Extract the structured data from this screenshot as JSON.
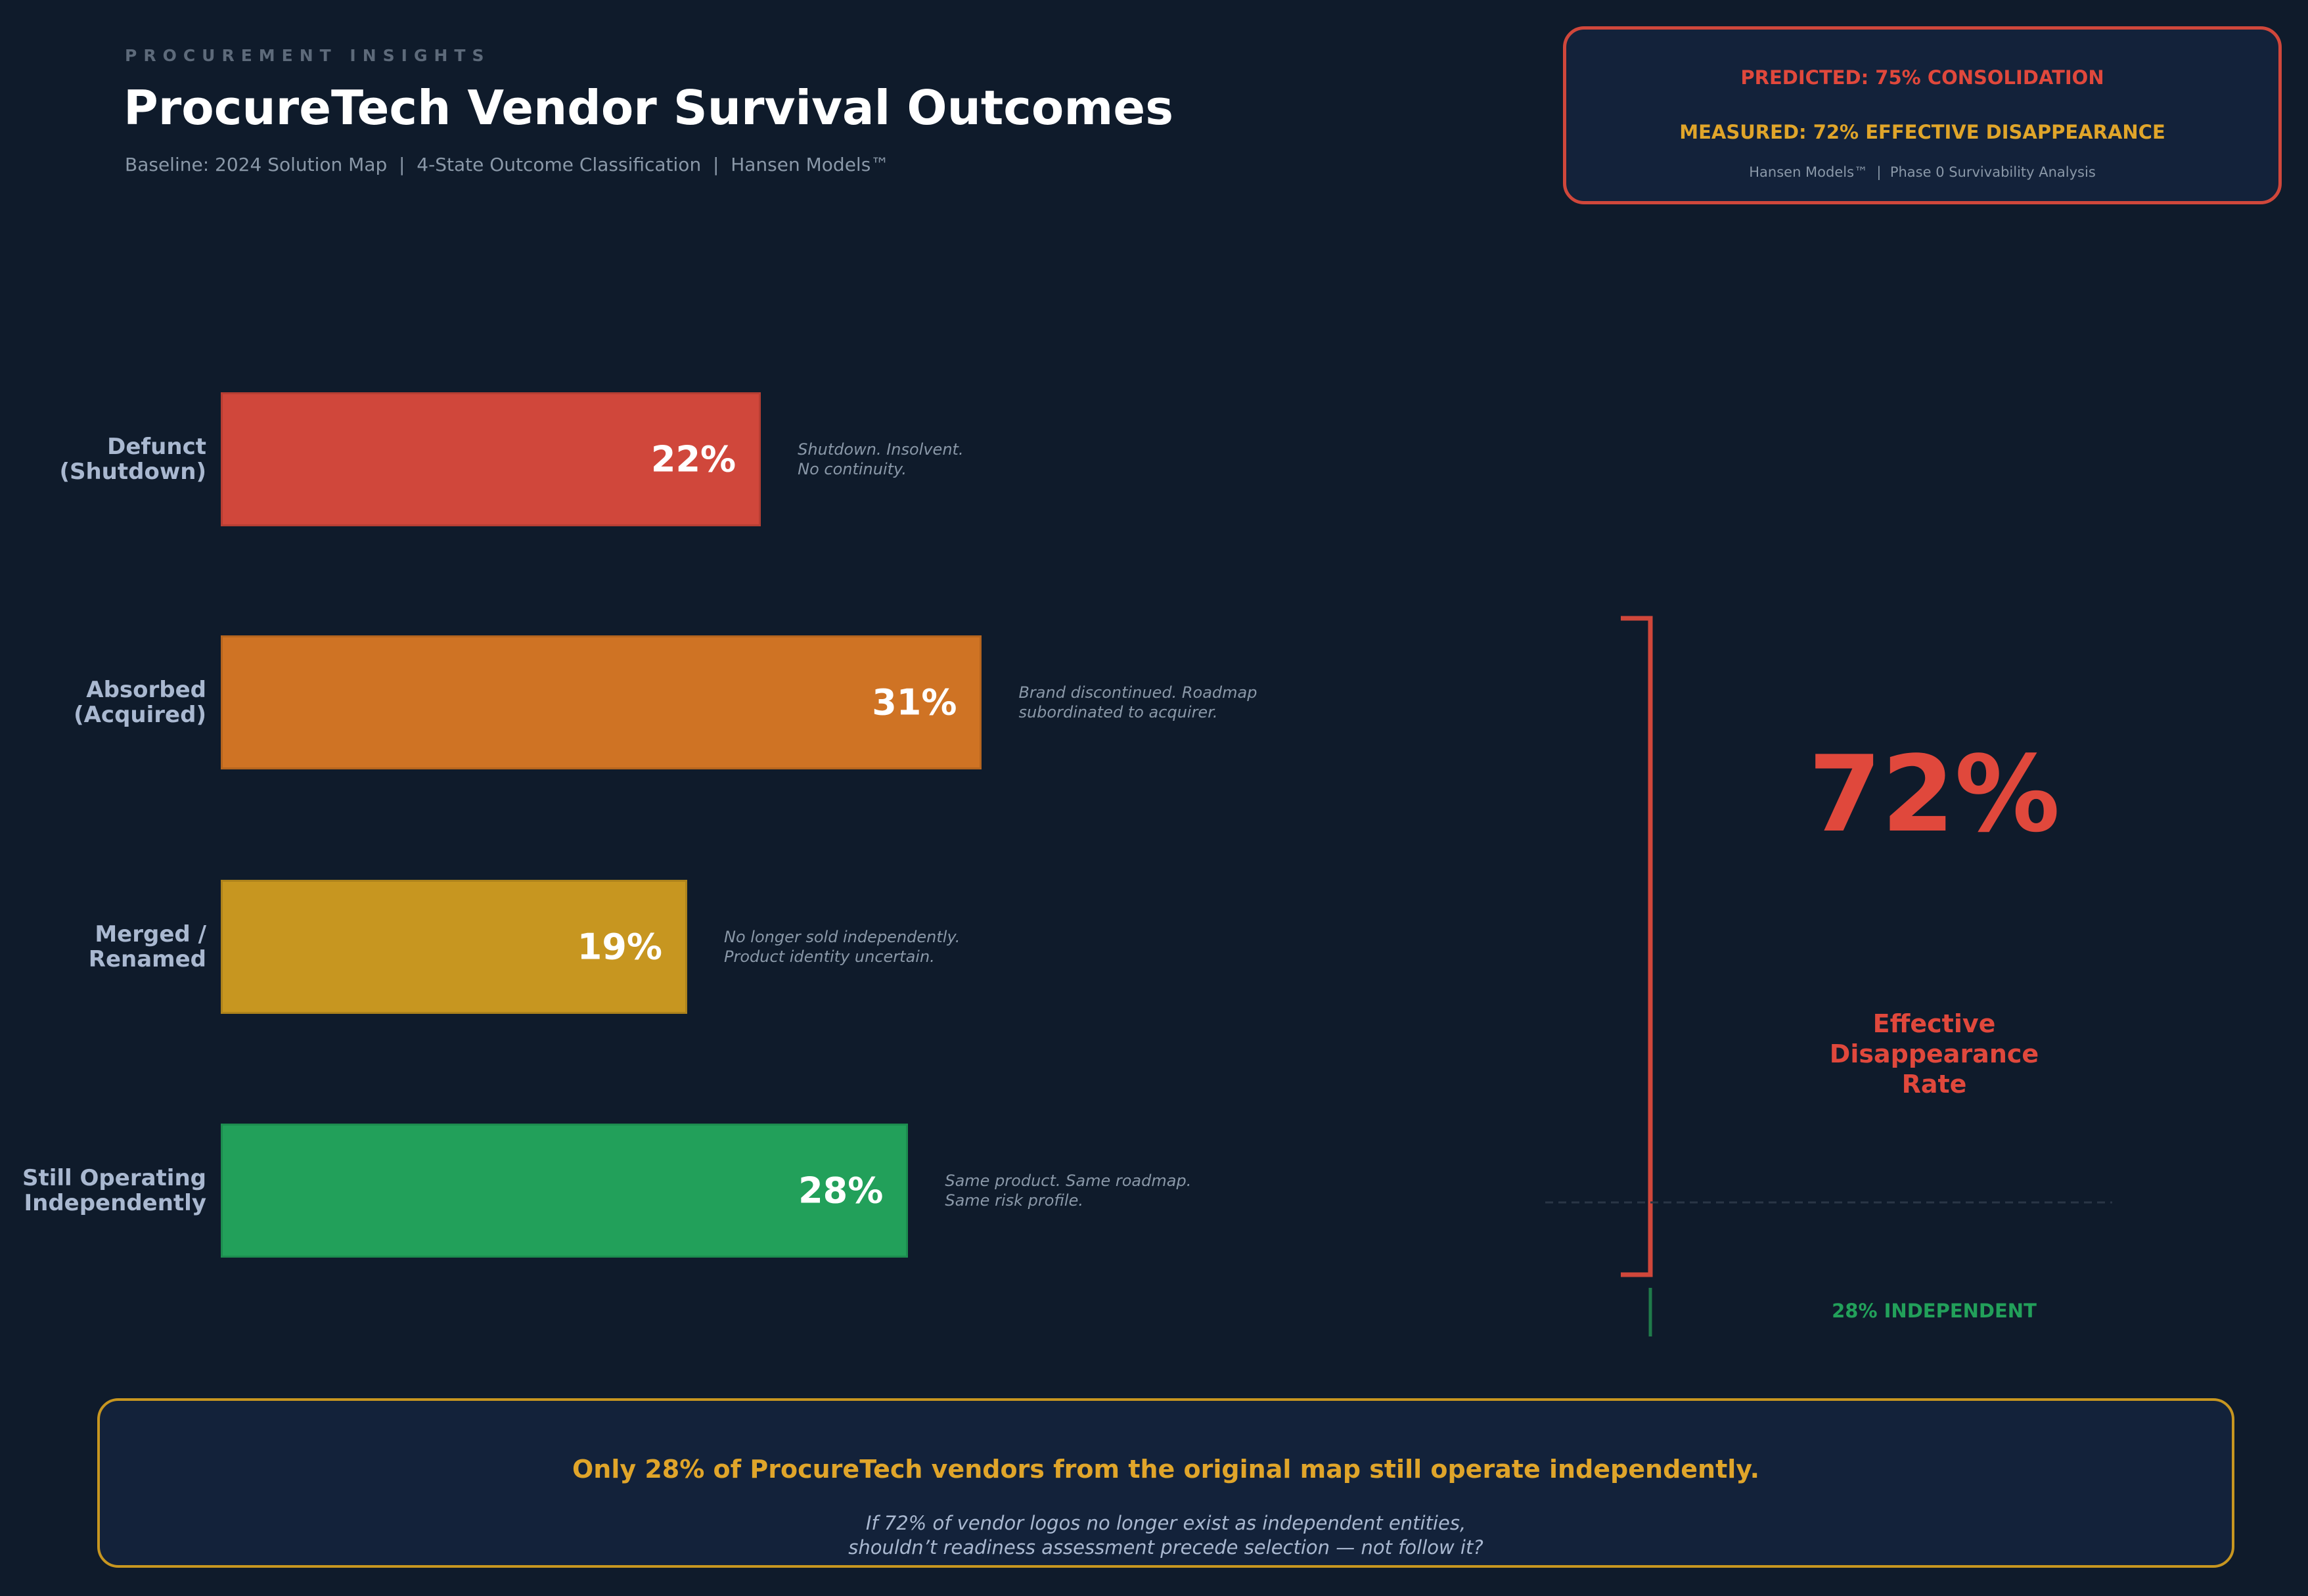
{
  "chart_data": {
    "type": "bar",
    "kicker": "PROCUREMENT INSIGHTS",
    "title": "ProcureTech Vendor Survival Outcomes",
    "subtitle": "Baseline: 2024 Solution Map  |  4-State Outcome Classification  |  Hansen Models™",
    "categories": [
      "Defunct\n(Shutdown)",
      "Absorbed\n(Acquired)",
      "Merged /\nRenamed",
      "Still Operating\nIndependently"
    ],
    "values": [
      22,
      31,
      19,
      28
    ],
    "value_labels": [
      "22%",
      "31%",
      "19%",
      "28%"
    ],
    "colors": [
      "#d0473b",
      "#cf7324",
      "#c79620",
      "#22a05a"
    ],
    "notes": [
      "Shutdown. Insolvent.\nNo continuity.",
      "Brand discontinued. Roadmap\nsubordinated to acquirer.",
      "No longer sold independently.\nProduct identity uncertain.",
      "Same product. Same roadmap.\nSame risk profile."
    ],
    "bracket_value": "72%",
    "bracket_label": "Effective\nDisappearance\nRate",
    "independent_label": "28% INDEPENDENT"
  },
  "header_box": {
    "predicted": "PREDICTED: 75% CONSOLIDATION",
    "measured": "MEASURED: 72% EFFECTIVE DISAPPEARANCE",
    "source": "Hansen Models™  |  Phase 0 Survivability Analysis"
  },
  "footer": {
    "headline": "Only 28% of ProcureTech vendors from the original map still operate independently.",
    "question": "If 72% of vendor logos no longer exist as independent entities,\nshouldn’t readiness assessment precede selection — not follow it?"
  }
}
